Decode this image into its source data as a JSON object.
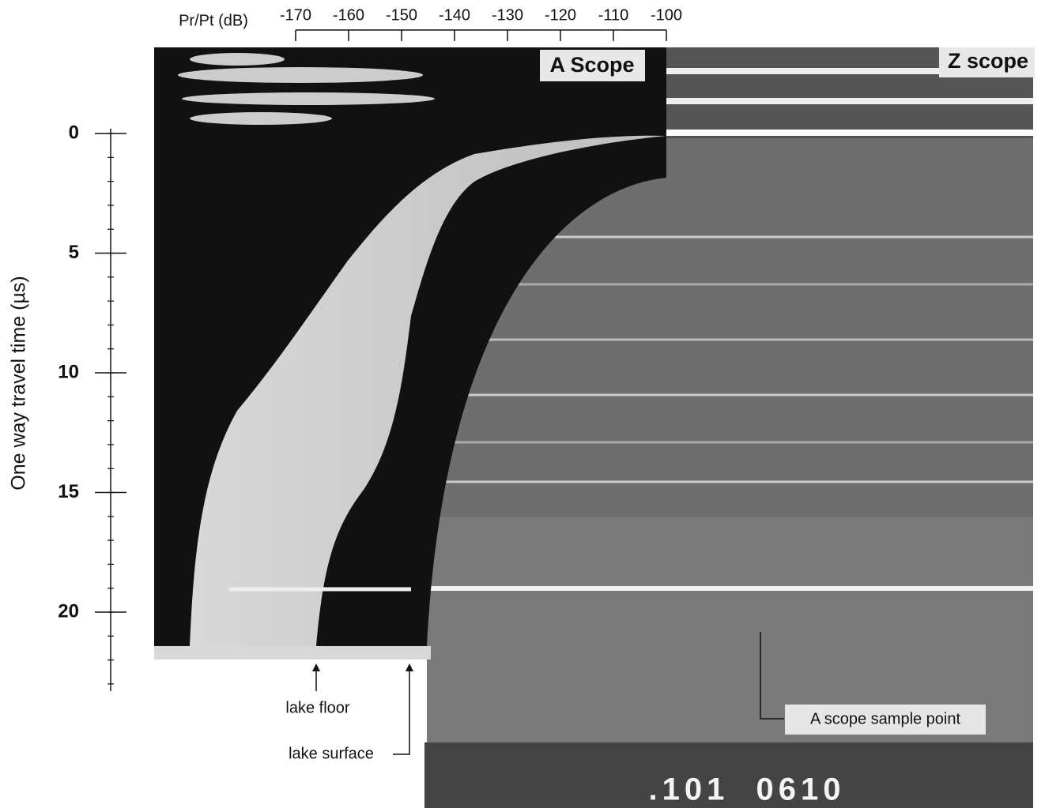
{
  "figure": {
    "x_axis": {
      "label": "Pr/Pt (dB)",
      "xlim": [
        -170,
        -100
      ],
      "xticks": [
        -170,
        -160,
        -150,
        -140,
        -130,
        -120,
        -110,
        -100
      ]
    },
    "y_axis": {
      "label": "One way travel time (µs)",
      "ylim": [
        -0.2,
        23.3
      ],
      "yticks": [
        0,
        5,
        10,
        15,
        20
      ]
    },
    "panels": [
      "A Scope",
      "Z scope"
    ],
    "annotations": [
      "lake floor",
      "lake surface",
      "A scope sample point"
    ],
    "counter": ".101  0610"
  }
}
